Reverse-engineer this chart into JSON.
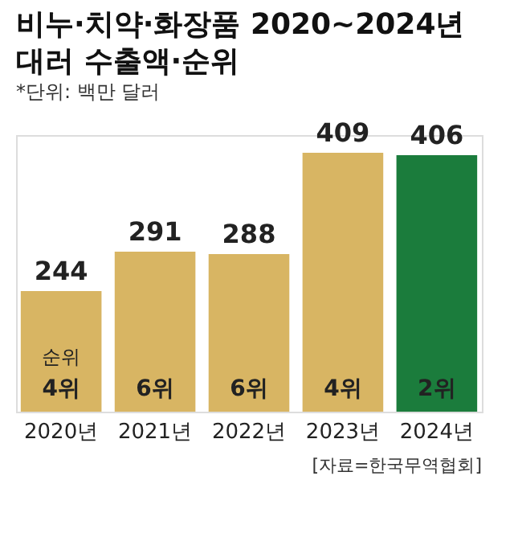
{
  "chart_data": {
    "type": "bar",
    "title": "비누·치약·화장품 2020~2024년\n대러 수출액·순위",
    "subtitle": "*단위: 백만 달러",
    "categories": [
      "2020년",
      "2021년",
      "2022년",
      "2023년",
      "2024년"
    ],
    "values": [
      244,
      291,
      288,
      409,
      406
    ],
    "colors": [
      "#d8b563",
      "#d8b563",
      "#d8b563",
      "#d8b563",
      "#1b7c3c"
    ],
    "ylim": [
      100,
      430
    ],
    "tick_labels": "x",
    "data_labels": true,
    "annotations": [
      "순위",
      "4위",
      "6위",
      "6위",
      "4위",
      "2위",
      "[자료=한국무역협회]"
    ]
  }
}
